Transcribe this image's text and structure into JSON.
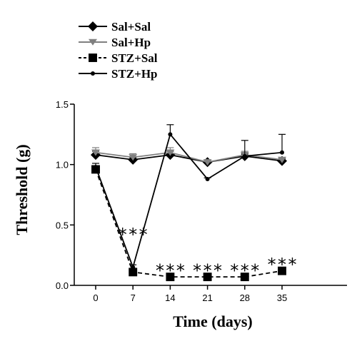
{
  "chart_data": {
    "type": "line",
    "title": "",
    "xlabel": "Time (days)",
    "ylabel": "Threshold (g)",
    "x": [
      0,
      7,
      14,
      21,
      28,
      35
    ],
    "x_tick_labels": [
      "0",
      "7",
      "14",
      "21",
      "28",
      "35"
    ],
    "ylim": [
      0.0,
      1.5
    ],
    "y_ticks": [
      0.0,
      0.5,
      1.0,
      1.5
    ],
    "y_tick_labels": [
      "0.0",
      "0.5",
      "1.0",
      "1.5"
    ],
    "grid": false,
    "legend_position": "top-left",
    "series": [
      {
        "name": "Sal+Sal",
        "marker": "diamond",
        "color": "#000000",
        "dashed": false,
        "values": [
          1.08,
          1.04,
          1.08,
          1.02,
          1.07,
          1.03
        ],
        "error": [
          0.03,
          0.02,
          0.03,
          0.01,
          0.02,
          0.02
        ]
      },
      {
        "name": "Sal+Hp",
        "marker": "triangle-down",
        "color": "#808080",
        "dashed": false,
        "values": [
          1.1,
          1.06,
          1.1,
          1.02,
          1.08,
          1.04
        ],
        "error": [
          0.04,
          0.03,
          0.04,
          0.02,
          0.03,
          0.02
        ]
      },
      {
        "name": "STZ+Sal",
        "marker": "square",
        "color": "#000000",
        "dashed": true,
        "values": [
          0.96,
          0.11,
          0.07,
          0.07,
          0.07,
          0.12
        ],
        "error": [
          0.03,
          0.02,
          0.01,
          0.01,
          0.01,
          0.02
        ]
      },
      {
        "name": "STZ+Hp",
        "marker": "circle",
        "color": "#000000",
        "dashed": false,
        "values": [
          0.98,
          0.15,
          1.25,
          0.88,
          1.07,
          1.1
        ],
        "error": [
          0.03,
          0.02,
          0.08,
          0.01,
          0.13,
          0.15
        ]
      }
    ],
    "annotations": [
      {
        "x": 7,
        "text": "***",
        "y": 0.42
      },
      {
        "x": 14,
        "text": "***",
        "y": 0.12
      },
      {
        "x": 21,
        "text": "***",
        "y": 0.12
      },
      {
        "x": 28,
        "text": "***",
        "y": 0.12
      },
      {
        "x": 35,
        "text": "***",
        "y": 0.17
      }
    ]
  }
}
